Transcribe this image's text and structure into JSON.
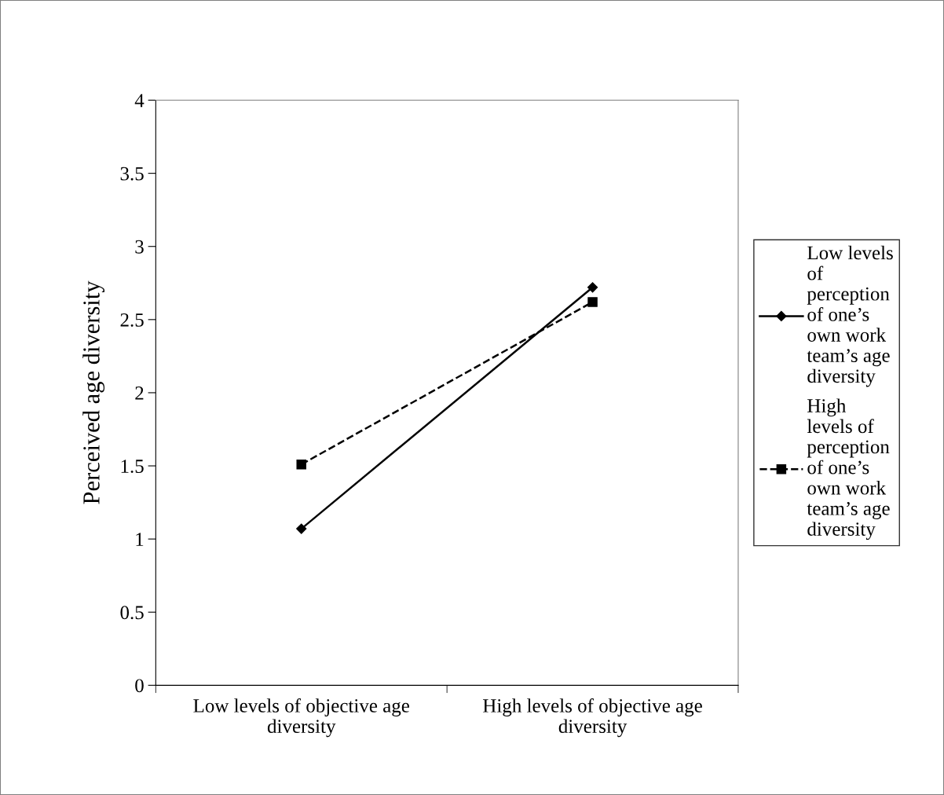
{
  "chart_data": {
    "type": "line",
    "ylabel": "Perceived age diversity",
    "categories": [
      "Low levels of objective age diversity",
      "High levels of objective age diversity"
    ],
    "series": [
      {
        "name": "Low levels of perception of one’s own work team’s age diversity",
        "color": "#000000",
        "values": [
          1.07,
          2.72
        ],
        "marker": "diamond",
        "line_style": "solid"
      },
      {
        "name": "High levels of perception of one’s own work team’s age diversity",
        "color": "#000000",
        "values": [
          1.51,
          2.62
        ],
        "marker": "square",
        "line_style": "dashed"
      }
    ],
    "ylim": [
      0,
      4
    ],
    "yticks": [
      0,
      0.5,
      1,
      1.5,
      2,
      2.5,
      3,
      3.5,
      4
    ],
    "grid": false,
    "legend": "right"
  }
}
